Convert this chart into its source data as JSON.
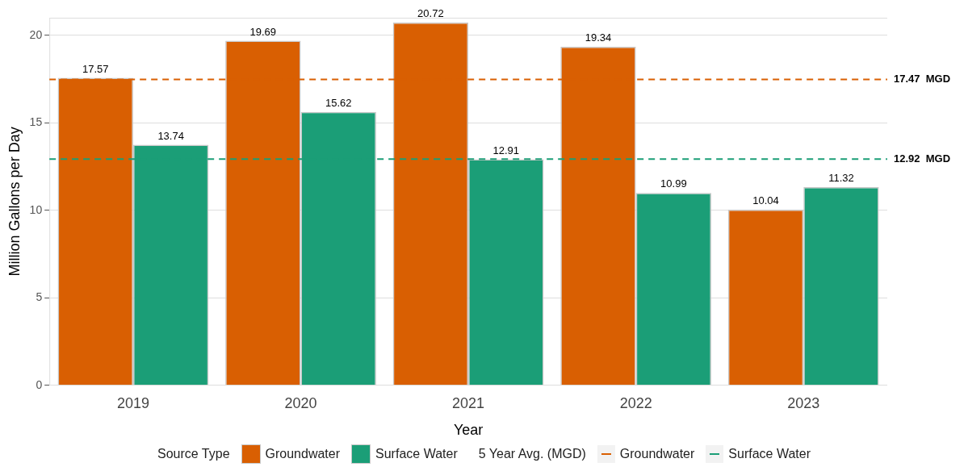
{
  "chart_data": {
    "type": "bar",
    "xlabel": "Year",
    "ylabel": "Million Gallons per Day",
    "legend_title": "Source Type",
    "annotations": [
      "5 Year Avg. (MGD)"
    ],
    "categories": [
      "2019",
      "2020",
      "2021",
      "2022",
      "2023"
    ],
    "series": [
      {
        "name": "Groundwater",
        "color": "#d95f02",
        "values": [
          17.57,
          19.69,
          20.72,
          19.34,
          10.04
        ]
      },
      {
        "name": "Surface Water",
        "color": "#1b9e77",
        "values": [
          13.74,
          15.62,
          12.91,
          10.99,
          11.32
        ]
      }
    ],
    "ylim": [
      0,
      21
    ],
    "yticks": [
      0,
      5,
      10,
      15,
      20
    ],
    "grid": "y",
    "data_labels": true,
    "legend": "bottom",
    "ref_lines": [
      {
        "axis": "y",
        "value": 17.47,
        "label": "17.47  MGD",
        "color": "#d95f02",
        "line_style": "dashed"
      },
      {
        "axis": "y",
        "value": 12.92,
        "label": "12.92  MGD",
        "color": "#1b9e77",
        "line_style": "dashed"
      }
    ]
  }
}
